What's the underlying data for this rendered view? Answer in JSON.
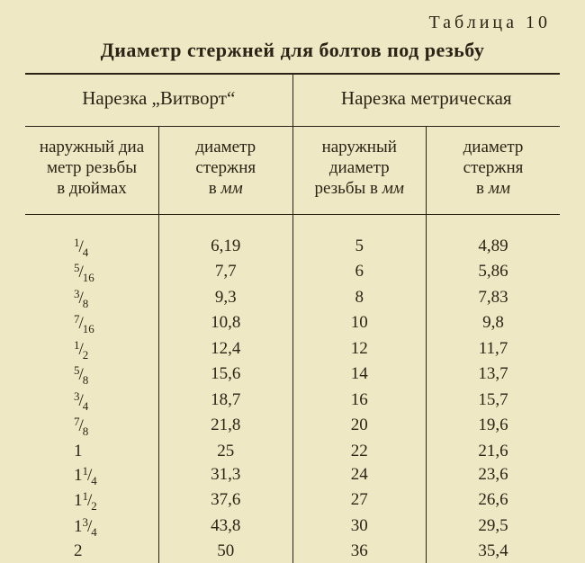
{
  "caption": "Таблица 10",
  "title": "Диаметр стержней для болтов под резьбу",
  "group_headers": {
    "whitworth": "Нарезка „Витворт“",
    "metric": "Нарезка метрическая"
  },
  "sub_headers": {
    "c1a": "наружный диа",
    "c1b": "метр резьбы",
    "c1c": "в дюймах",
    "c2a": "диаметр",
    "c2b": "стержня",
    "c2c_prefix": "в ",
    "c2c_unit": "мм",
    "c3a": "наружный",
    "c3b": "диаметр",
    "c3c_prefix": "резьбы в ",
    "c3c_unit": "мм",
    "c4a": "диаметр",
    "c4b": "стержня",
    "c4c_prefix": "в ",
    "c4c_unit": "мм"
  },
  "rows": [
    {
      "frac": {
        "w": "",
        "n": "1",
        "d": "4"
      },
      "d_whit": "6,19",
      "d_metr_out": "5",
      "d_metr_rod": "4,89"
    },
    {
      "frac": {
        "w": "",
        "n": "5",
        "d": "16"
      },
      "d_whit": "7,7",
      "d_metr_out": "6",
      "d_metr_rod": "5,86"
    },
    {
      "frac": {
        "w": "",
        "n": "3",
        "d": "8"
      },
      "d_whit": "9,3",
      "d_metr_out": "8",
      "d_metr_rod": "7,83"
    },
    {
      "frac": {
        "w": "",
        "n": "7",
        "d": "16"
      },
      "d_whit": "10,8",
      "d_metr_out": "10",
      "d_metr_rod": "9,8"
    },
    {
      "frac": {
        "w": "",
        "n": "1",
        "d": "2"
      },
      "d_whit": "12,4",
      "d_metr_out": "12",
      "d_metr_rod": "11,7"
    },
    {
      "frac": {
        "w": "",
        "n": "5",
        "d": "8"
      },
      "d_whit": "15,6",
      "d_metr_out": "14",
      "d_metr_rod": "13,7"
    },
    {
      "frac": {
        "w": "",
        "n": "3",
        "d": "4"
      },
      "d_whit": "18,7",
      "d_metr_out": "16",
      "d_metr_rod": "15,7"
    },
    {
      "frac": {
        "w": "",
        "n": "7",
        "d": "8"
      },
      "d_whit": "21,8",
      "d_metr_out": "20",
      "d_metr_rod": "19,6"
    },
    {
      "frac": {
        "w": "1",
        "n": "",
        "d": ""
      },
      "d_whit": "25",
      "d_metr_out": "22",
      "d_metr_rod": "21,6"
    },
    {
      "frac": {
        "w": "1",
        "n": "1",
        "d": "4"
      },
      "d_whit": "31,3",
      "d_metr_out": "24",
      "d_metr_rod": "23,6"
    },
    {
      "frac": {
        "w": "1",
        "n": "1",
        "d": "2"
      },
      "d_whit": "37,6",
      "d_metr_out": "27",
      "d_metr_rod": "26,6"
    },
    {
      "frac": {
        "w": "1",
        "n": "3",
        "d": "4"
      },
      "d_whit": "43,8",
      "d_metr_out": "30",
      "d_metr_rod": "29,5"
    },
    {
      "frac": {
        "w": "2",
        "n": "",
        "d": ""
      },
      "d_whit": "50",
      "d_metr_out": "36",
      "d_metr_rod": "35,4"
    }
  ]
}
